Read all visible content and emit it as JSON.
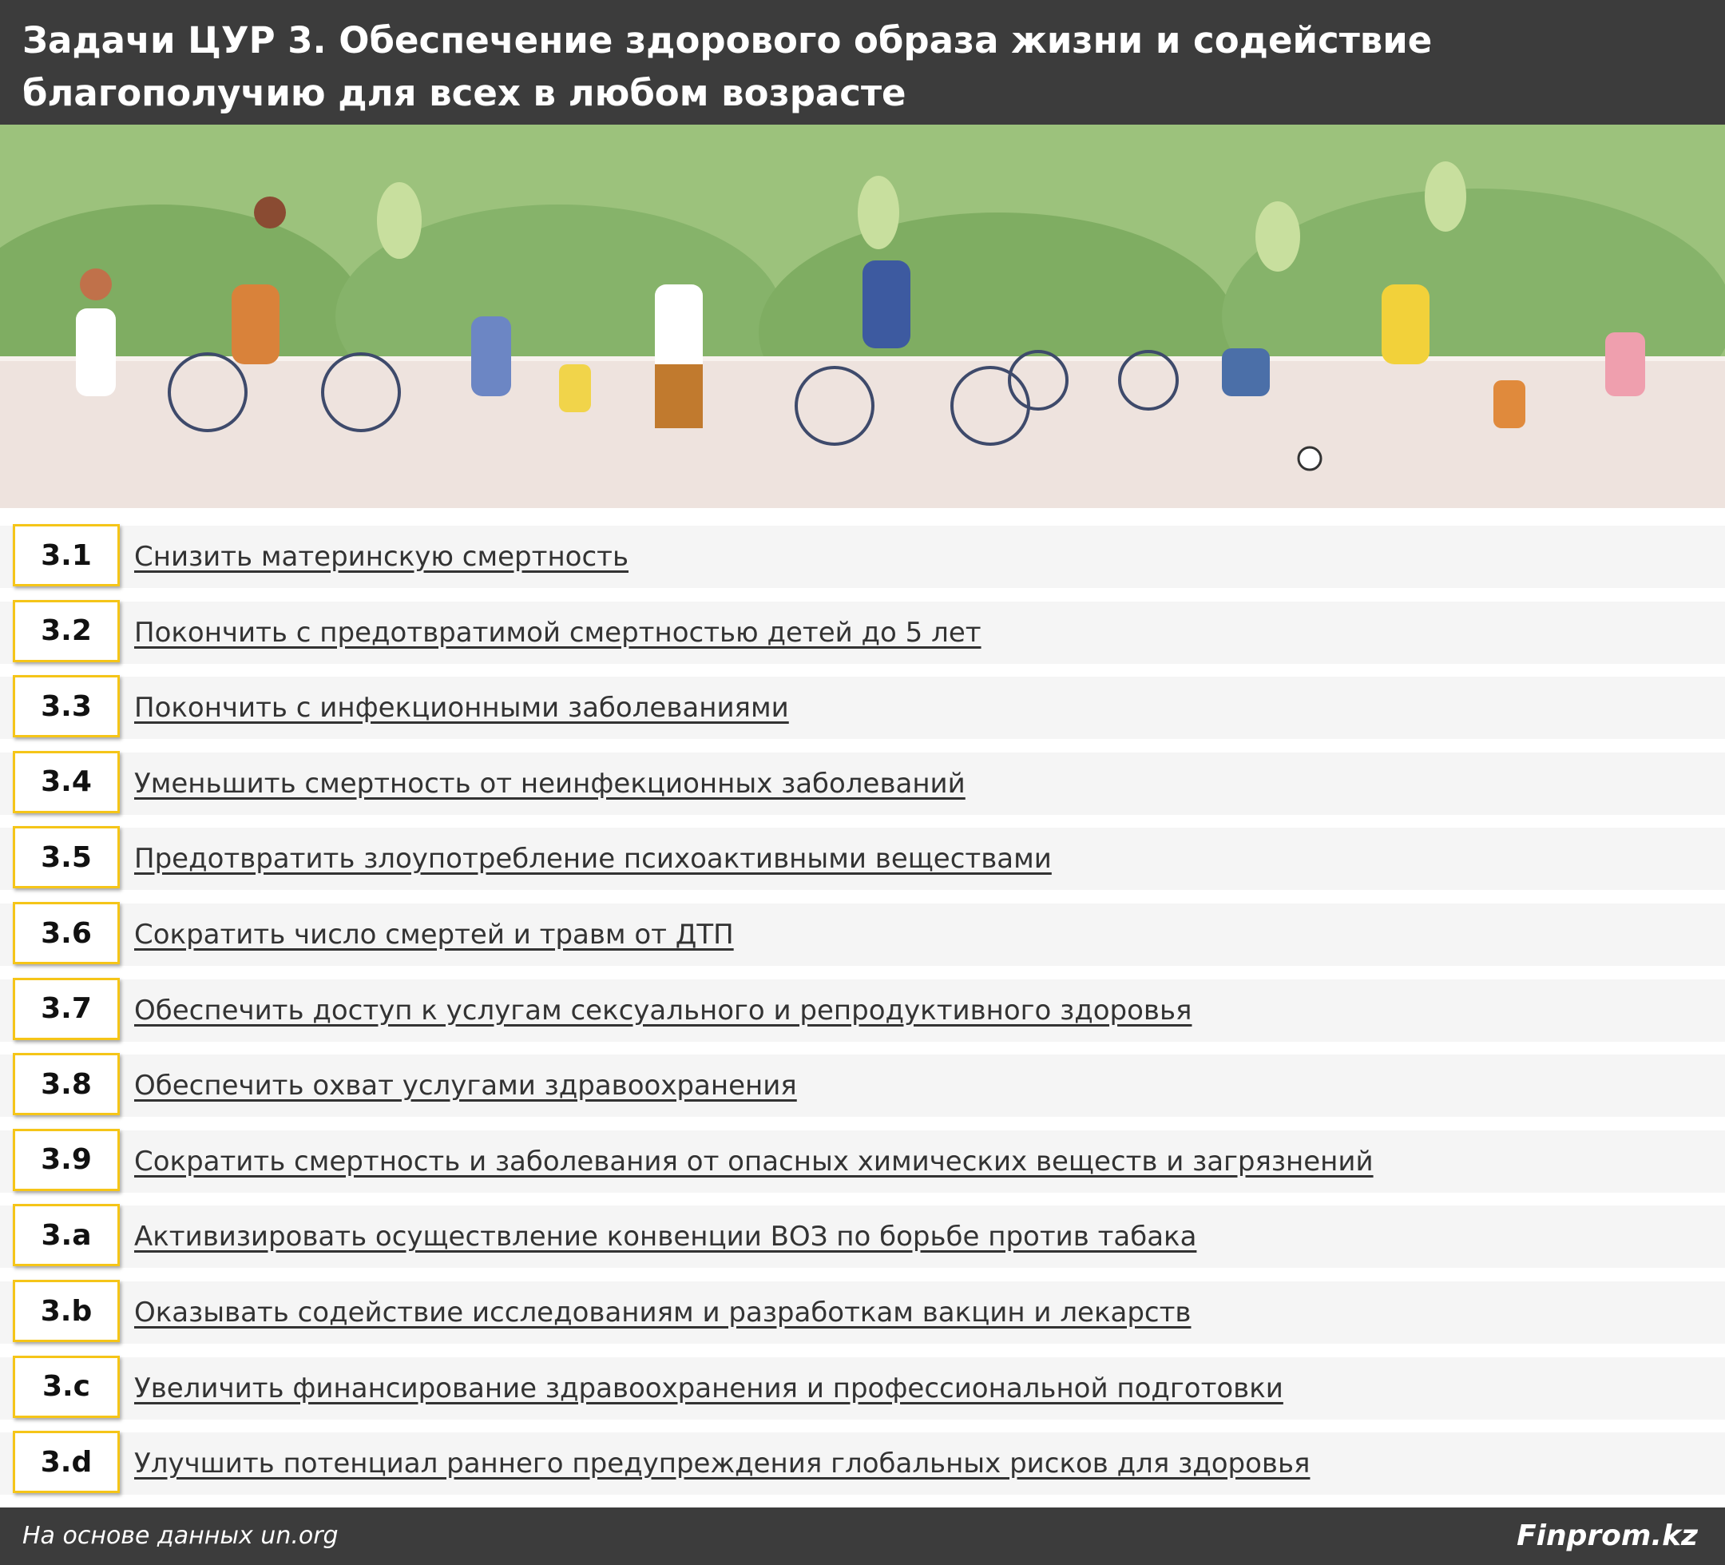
{
  "header": {
    "title": "Задачи ЦУР 3. Обеспечение здорового образа жизни и содействие благополучию для всех в любом возрасте"
  },
  "items": [
    {
      "id": "3.1",
      "text": "Снизить материнскую смертность"
    },
    {
      "id": "3.2",
      "text": "Покончить с предотвратимой смертностью детей до 5 лет"
    },
    {
      "id": "3.3",
      "text": "Покончить с инфекционными заболеваниями"
    },
    {
      "id": "3.4",
      "text": "Уменьшить смертность от неинфекционных заболеваний"
    },
    {
      "id": "3.5",
      "text": "Предотвратить злоупотребление психоактивными веществами"
    },
    {
      "id": "3.6",
      "text": "Сократить число смертей и травм от ДТП"
    },
    {
      "id": "3.7",
      "text": "Обеспечить доступ к услугам сексуального и репродуктивного здоровья"
    },
    {
      "id": "3.8",
      "text": "Обеспечить охват услугами здравоохранения"
    },
    {
      "id": "3.9",
      "text": "Сократить смертность и заболевания от опасных химических веществ и загрязнений"
    },
    {
      "id": "3.a",
      "text": "Активизировать осуществление конвенции ВОЗ по борьбе против табака"
    },
    {
      "id": "3.b",
      "text": "Оказывать содействие исследованиям и разработкам вакцин и лекарств"
    },
    {
      "id": "3.c",
      "text": "Увеличить финансирование здравоохранения и профессиональной подготовки"
    },
    {
      "id": "3.d",
      "text": "Улучшить потенциал раннего предупреждения глобальных рисков для здоровья"
    }
  ],
  "footer": {
    "source": "На основе данных un.org",
    "brand": "Finprom.kz"
  }
}
